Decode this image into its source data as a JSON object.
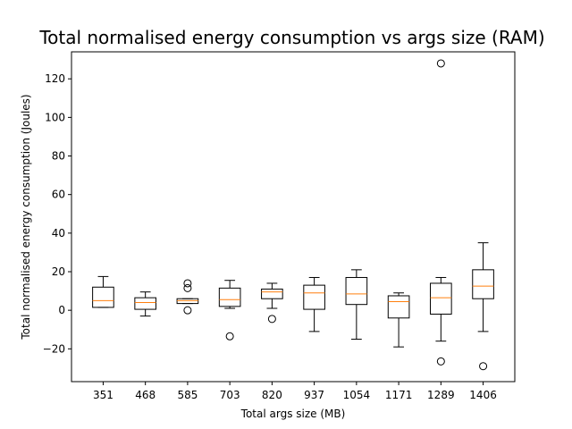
{
  "chart_data": {
    "type": "box",
    "title": "Total normalised energy consumption vs args size (RAM)",
    "xlabel": "Total args size (MB)",
    "ylabel": "Total normalised energy consumption (Joules)",
    "ylim": [
      -37,
      134
    ],
    "yticks": [
      -20,
      0,
      20,
      40,
      60,
      80,
      100,
      120
    ],
    "grid": false,
    "box_color": "#000000",
    "median_color": "#ff7f0e",
    "categories": [
      "351",
      "468",
      "585",
      "703",
      "820",
      "937",
      "1054",
      "1171",
      "1289",
      "1406"
    ],
    "boxes": [
      {
        "whisker_low": 1.5,
        "q1": 1.5,
        "median": 5,
        "q3": 12,
        "whisker_high": 17.5,
        "fliers": []
      },
      {
        "whisker_low": -3,
        "q1": 0.5,
        "median": 4,
        "q3": 6.5,
        "whisker_high": 9.5,
        "fliers": []
      },
      {
        "whisker_low": 3.5,
        "q1": 3.5,
        "median": 5,
        "q3": 6,
        "whisker_high": 6,
        "fliers": [
          14,
          11.5,
          0
        ]
      },
      {
        "whisker_low": 1,
        "q1": 2,
        "median": 5.5,
        "q3": 11.5,
        "whisker_high": 15.5,
        "fliers": [
          -13.5
        ]
      },
      {
        "whisker_low": 1,
        "q1": 6,
        "median": 9.5,
        "q3": 11,
        "whisker_high": 14,
        "fliers": [
          -4.5
        ]
      },
      {
        "whisker_low": -11,
        "q1": 0.5,
        "median": 9,
        "q3": 13,
        "whisker_high": 17,
        "fliers": []
      },
      {
        "whisker_low": -15,
        "q1": 3,
        "median": 8.5,
        "q3": 17,
        "whisker_high": 21,
        "fliers": []
      },
      {
        "whisker_low": -19,
        "q1": -4,
        "median": 4.5,
        "q3": 7.5,
        "whisker_high": 9,
        "fliers": []
      },
      {
        "whisker_low": -16,
        "q1": -2,
        "median": 6.5,
        "q3": 14,
        "whisker_high": 17,
        "fliers": [
          128,
          -26.5
        ]
      },
      {
        "whisker_low": -11,
        "q1": 6,
        "median": 12.5,
        "q3": 21,
        "whisker_high": 35,
        "fliers": [
          -29
        ]
      }
    ]
  }
}
